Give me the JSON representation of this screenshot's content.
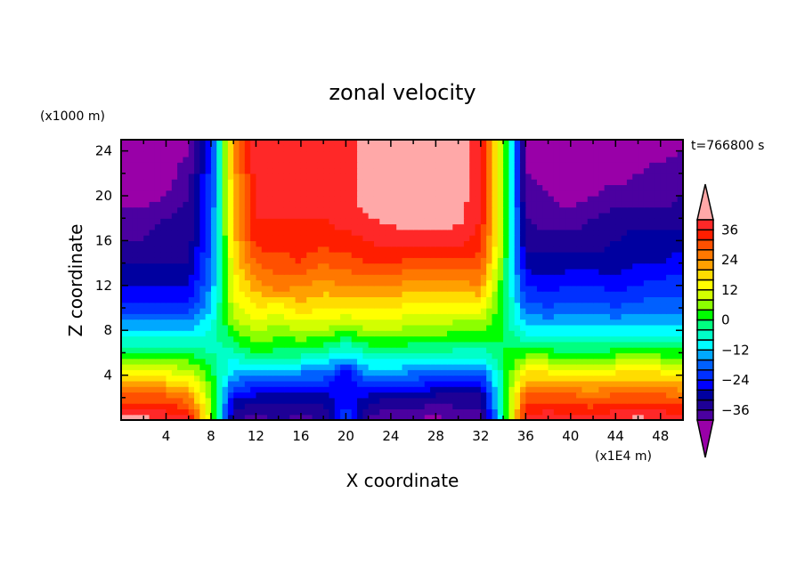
{
  "chart_data": {
    "type": "heatmap",
    "title": "zonal velocity",
    "xlabel": "X coordinate",
    "ylabel": "Z coordinate",
    "x_unit_label": "(x1E4 m)",
    "y_unit_label": "(x1000 m)",
    "time_label": "t=766800 s",
    "xlim": [
      0,
      50
    ],
    "ylim": [
      0,
      25
    ],
    "x_ticks": [
      4,
      8,
      12,
      16,
      20,
      24,
      28,
      32,
      36,
      40,
      44,
      48
    ],
    "y_ticks": [
      4,
      8,
      12,
      16,
      20,
      24
    ],
    "x": [
      0,
      2,
      4,
      6,
      8,
      10,
      12,
      14,
      16,
      18,
      20,
      22,
      24,
      26,
      28,
      30,
      32,
      34,
      36,
      38,
      40,
      42,
      44,
      46,
      48,
      50
    ],
    "z": [
      0,
      2,
      4,
      6,
      8,
      10,
      12,
      14,
      16,
      18,
      20,
      22,
      24
    ],
    "values": [
      [
        42,
        42,
        40,
        38,
        10,
        -36,
        -38,
        -36,
        -38,
        -36,
        -20,
        -38,
        -40,
        -40,
        -42,
        -38,
        -38,
        -5,
        38,
        40,
        38,
        38,
        40,
        42,
        40,
        38
      ],
      [
        30,
        30,
        30,
        26,
        6,
        -28,
        -30,
        -30,
        -30,
        -30,
        -26,
        -30,
        -32,
        -32,
        -34,
        -34,
        -34,
        -2,
        30,
        30,
        30,
        28,
        30,
        30,
        30,
        28
      ],
      [
        14,
        14,
        14,
        12,
        2,
        -14,
        -16,
        -18,
        -18,
        -18,
        -28,
        -16,
        -16,
        -18,
        -20,
        -20,
        -22,
        -2,
        18,
        18,
        16,
        16,
        18,
        18,
        18,
        16
      ],
      [
        0,
        0,
        0,
        0,
        -4,
        -6,
        2,
        -2,
        -2,
        -4,
        -10,
        -4,
        -4,
        -4,
        -4,
        -6,
        -6,
        0,
        2,
        2,
        0,
        0,
        2,
        2,
        2,
        2
      ],
      [
        -12,
        -12,
        -12,
        -12,
        -8,
        4,
        8,
        6,
        8,
        8,
        4,
        8,
        8,
        6,
        6,
        4,
        4,
        0,
        -10,
        -10,
        -10,
        -10,
        -10,
        -10,
        -10,
        -10
      ],
      [
        -22,
        -22,
        -22,
        -22,
        -12,
        10,
        16,
        14,
        18,
        16,
        16,
        16,
        16,
        14,
        14,
        14,
        14,
        0,
        -18,
        -20,
        -18,
        -18,
        -20,
        -18,
        -18,
        -18
      ],
      [
        -28,
        -28,
        -28,
        -28,
        -16,
        14,
        22,
        26,
        24,
        22,
        24,
        24,
        24,
        22,
        22,
        22,
        24,
        0,
        -24,
        -26,
        -24,
        -24,
        -26,
        -24,
        -22,
        -22
      ],
      [
        -32,
        -32,
        -32,
        -32,
        -18,
        16,
        28,
        30,
        32,
        28,
        30,
        32,
        32,
        30,
        30,
        30,
        30,
        4,
        -30,
        -30,
        -30,
        -30,
        -30,
        -28,
        -28,
        -26
      ],
      [
        -36,
        -36,
        -34,
        -34,
        -20,
        18,
        34,
        34,
        34,
        34,
        34,
        36,
        38,
        38,
        38,
        38,
        34,
        6,
        -34,
        -34,
        -34,
        -34,
        -32,
        -30,
        -30,
        -30
      ],
      [
        -38,
        -38,
        -36,
        -34,
        -20,
        20,
        36,
        36,
        36,
        36,
        38,
        40,
        41,
        42,
        42,
        41,
        36,
        8,
        -36,
        -38,
        -38,
        -36,
        -34,
        -34,
        -34,
        -34
      ],
      [
        -42,
        -42,
        -40,
        -36,
        -22,
        20,
        38,
        38,
        38,
        38,
        38,
        42,
        44,
        44,
        44,
        42,
        38,
        8,
        -38,
        -40,
        -42,
        -40,
        -38,
        -38,
        -38,
        -36
      ],
      [
        -42,
        -42,
        -42,
        -38,
        -22,
        22,
        38,
        38,
        38,
        38,
        38,
        42,
        44,
        44,
        44,
        42,
        38,
        8,
        -40,
        -42,
        -42,
        -42,
        -42,
        -40,
        -38,
        -36
      ],
      [
        -42,
        -42,
        -42,
        -40,
        -24,
        22,
        38,
        38,
        38,
        38,
        38,
        42,
        44,
        44,
        44,
        42,
        38,
        8,
        -40,
        -42,
        -42,
        -42,
        -42,
        -42,
        -42,
        -40
      ]
    ],
    "contour_levels": [
      -40,
      -36,
      -32,
      -28,
      -24,
      -20,
      -16,
      -12,
      -8,
      -4,
      0,
      4,
      8,
      12,
      16,
      20,
      24,
      28,
      32,
      36,
      40
    ],
    "colorbar_labels": [
      "36",
      "24",
      "12",
      "0",
      "-12",
      "-24",
      "-36"
    ],
    "colorbar_label_values": [
      36,
      24,
      12,
      0,
      -12,
      -24,
      -36
    ],
    "colors": [
      "#9900a8",
      "#4b00a0",
      "#1e0096",
      "#0000a0",
      "#0000ff",
      "#0030ff",
      "#0060ff",
      "#00a8ff",
      "#00ffff",
      "#00ffc8",
      "#00ff80",
      "#00ff00",
      "#8cff00",
      "#d2ff00",
      "#ffff00",
      "#ffdc00",
      "#ffa000",
      "#ff7800",
      "#ff5000",
      "#ff1e00",
      "#ff2828",
      "#ffa8a8"
    ],
    "grid": false,
    "legend": "right colorbar"
  }
}
